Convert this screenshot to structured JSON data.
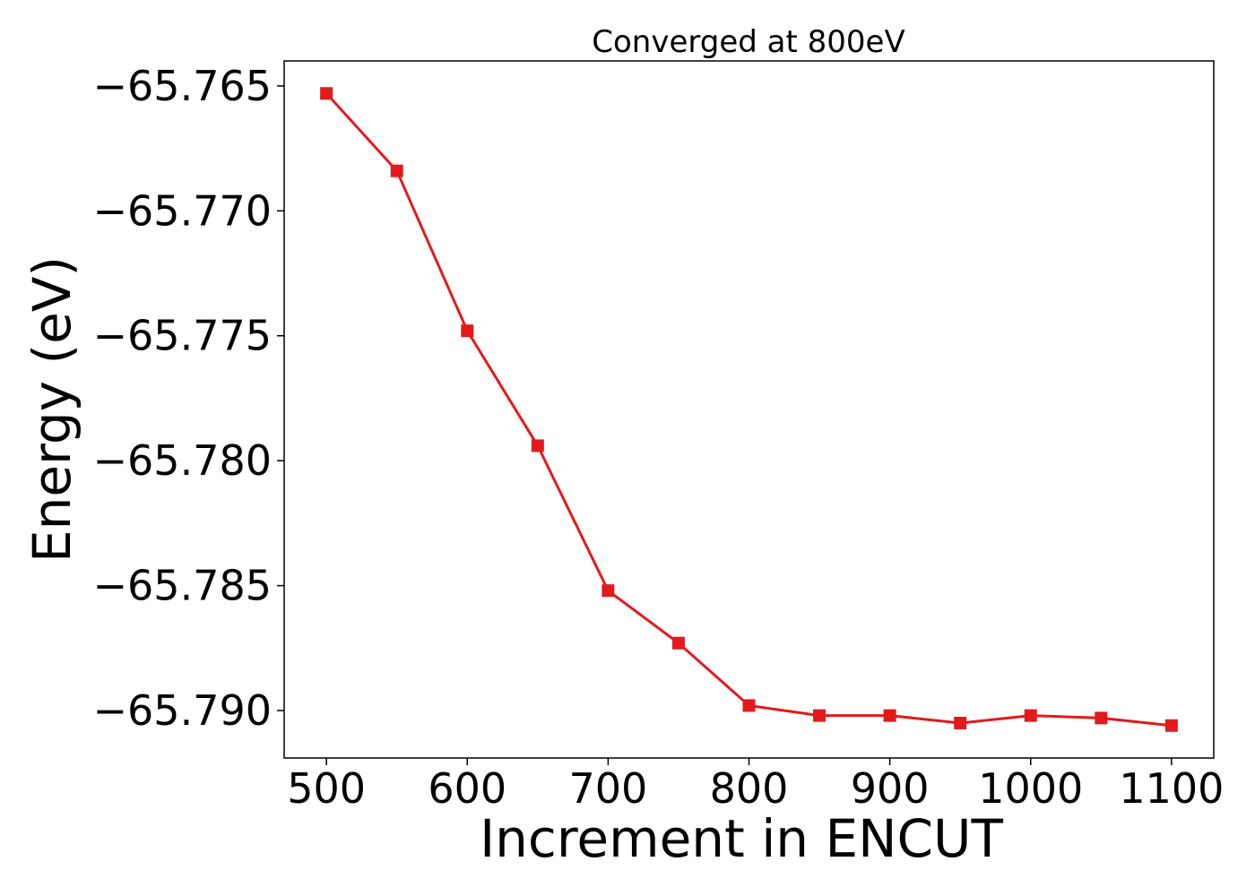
{
  "chart_data": {
    "type": "line",
    "title": "Converged at 800eV",
    "xlabel": "Increment in ENCUT",
    "ylabel": "Energy (eV)",
    "x": [
      500,
      550,
      600,
      650,
      700,
      750,
      800,
      850,
      900,
      950,
      1000,
      1050,
      1100
    ],
    "series": [
      {
        "values": [
          -65.7653,
          -65.7684,
          -65.7748,
          -65.7794,
          -65.7852,
          -65.7873,
          -65.7898,
          -65.7902,
          -65.7902,
          -65.7905,
          -65.7902,
          -65.7903,
          -65.7906
        ],
        "color": "#e31a1c",
        "marker": "square"
      }
    ],
    "xlim": [
      470,
      1130
    ],
    "ylim": [
      -65.7919,
      -65.764
    ],
    "xticks": [
      500,
      600,
      700,
      800,
      900,
      1000,
      1100
    ],
    "xtick_labels": [
      "500",
      "600",
      "700",
      "800",
      "900",
      "1000",
      "1100"
    ],
    "yticks": [
      -65.765,
      -65.77,
      -65.775,
      -65.78,
      -65.785,
      -65.79
    ],
    "ytick_labels": [
      "−65.765",
      "−65.770",
      "−65.775",
      "−65.780",
      "−65.785",
      "−65.790"
    ],
    "grid": false,
    "legend": false
  }
}
